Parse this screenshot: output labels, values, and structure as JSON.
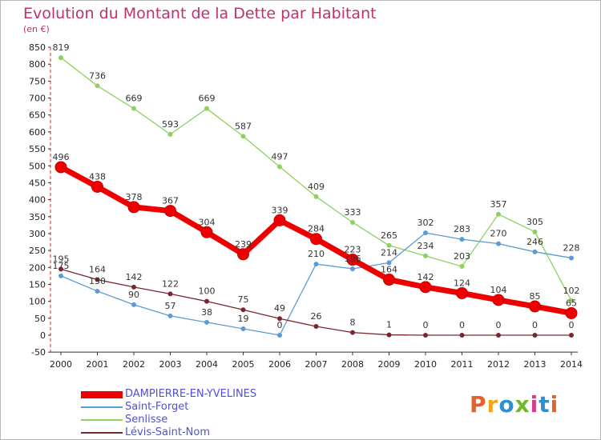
{
  "title": "Evolution du Montant de la Dette par Habitant",
  "unit": "(en €)",
  "logo": {
    "text": "Proxiti",
    "colors": [
      "#e2622a",
      "#f2a519",
      "#2f8fcf",
      "#73b72d",
      "#d73b8d",
      "#2f8fcf",
      "#e2622a"
    ]
  },
  "chart_data": {
    "type": "line",
    "title": "Evolution du Montant de la Dette par Habitant",
    "ylabel": "(en €)",
    "xlabel": "",
    "x": [
      "2000",
      "2001",
      "2002",
      "2003",
      "2004",
      "2005",
      "2006",
      "2007",
      "2008",
      "2009",
      "2010",
      "2011",
      "2012",
      "2013",
      "2014"
    ],
    "ylim": [
      -50,
      850
    ],
    "yticks": [
      -50,
      0,
      50,
      100,
      150,
      200,
      250,
      300,
      350,
      400,
      450,
      500,
      550,
      600,
      650,
      700,
      750,
      800,
      850
    ],
    "grid": false,
    "legend": "bottom-left",
    "series": [
      {
        "name": "DAMPIERRE-EN-YVELINES",
        "color": "#ee0000",
        "values": [
          496,
          438,
          378,
          367,
          304,
          239,
          339,
          284,
          223,
          164,
          142,
          124,
          104,
          85,
          65
        ],
        "labels": [
          "496",
          "438",
          "378",
          "367",
          "304",
          "239",
          "339",
          "284",
          "223",
          "164",
          "142",
          "124",
          "104",
          "85",
          "65"
        ]
      },
      {
        "name": "Saint-Forget",
        "color": "#5b9bd5",
        "values": [
          175,
          130,
          90,
          57,
          38,
          19,
          0,
          210,
          196,
          214,
          302,
          283,
          270,
          246,
          228
        ],
        "labels": [
          "175",
          "130",
          "90",
          "57",
          "38",
          "19",
          "0",
          "210",
          "196",
          "214",
          "302",
          "283",
          "270",
          "246",
          "228"
        ]
      },
      {
        "name": "Senlisse",
        "color": "#8ed15c",
        "values": [
          819,
          736,
          669,
          593,
          669,
          587,
          497,
          409,
          333,
          265,
          234,
          203,
          357,
          305,
          102
        ],
        "labels": [
          "819",
          "736",
          "669",
          "593",
          "669",
          "587",
          "497",
          "409",
          "333",
          "265",
          "234",
          "203",
          "357",
          "305",
          "102"
        ]
      },
      {
        "name": "Lévis-Saint-Nom",
        "color": "#7a2630",
        "values": [
          195,
          164,
          142,
          122,
          100,
          75,
          49,
          26,
          8,
          1,
          0,
          0,
          0,
          0,
          0
        ],
        "labels": [
          "195",
          "164",
          "142",
          "122",
          "100",
          "75",
          "49",
          "26",
          "8",
          "1",
          "0",
          "0",
          "0",
          "0",
          "0"
        ]
      }
    ]
  }
}
